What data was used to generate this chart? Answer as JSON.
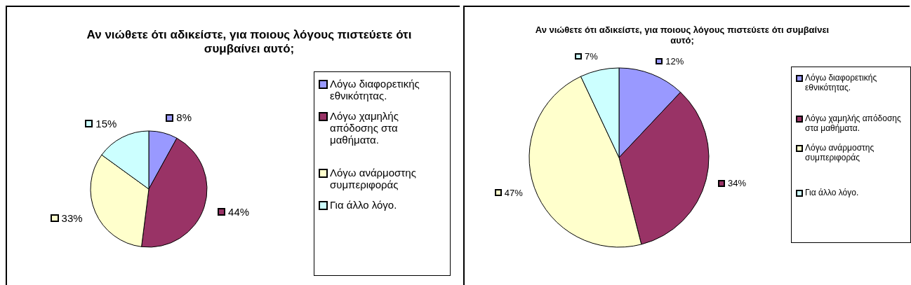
{
  "chart_data": [
    {
      "type": "pie",
      "title": "Αν νιώθετε ότι αδικείστε, για ποιους λόγους πιστεύετε ότι συμβαίνει αυτό;",
      "categories": [
        "Λόγω διαφορετικής εθνικότητας.",
        "Λόγω χαμηλής απόδοσης στα μαθήματα.",
        "Λόγω ανάρμοστης συμπεριφοράς",
        "Για άλλο λόγο."
      ],
      "values": [
        8,
        44,
        33,
        15
      ],
      "value_labels": [
        "8%",
        "44%",
        "33%",
        "15%"
      ],
      "colors": [
        "#9999ff",
        "#993366",
        "#ffffcc",
        "#ccffff"
      ],
      "legend": "right"
    },
    {
      "type": "pie",
      "title": "Αν νιώθετε ότι αδικείστε, για ποιους λόγους πιστεύετε ότι συμβαίνει αυτό;",
      "categories": [
        "Λόγω διαφορετικής εθνικότητας.",
        "Λόγω χαμηλής απόδοσης στα μαθήματα.",
        "Λόγω ανάρμοστης συμπεριφοράς",
        "Για άλλο λόγο."
      ],
      "values": [
        12,
        34,
        47,
        7
      ],
      "value_labels": [
        "12%",
        "34%",
        "47%",
        "7%"
      ],
      "colors": [
        "#9999ff",
        "#993366",
        "#ffffcc",
        "#ccffff"
      ],
      "legend": "right"
    }
  ]
}
